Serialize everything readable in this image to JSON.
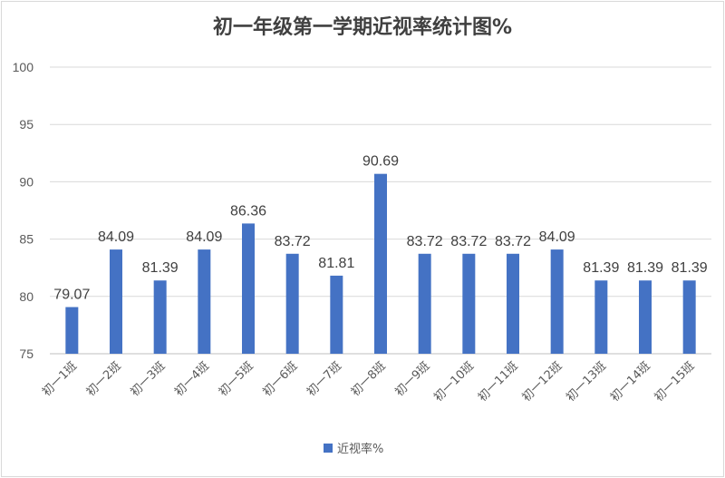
{
  "chart_data": {
    "type": "bar",
    "title": "初一年级第一学期近视率统计图%",
    "categories": [
      "初一1班",
      "初一2班",
      "初一3班",
      "初一4班",
      "初一5班",
      "初一6班",
      "初一7班",
      "初一8班",
      "初一9班",
      "初一10班",
      "初一11班",
      "初一12班",
      "初一13班",
      "初一14班",
      "初一15班"
    ],
    "series": [
      {
        "name": "近视率%",
        "color": "#4472c4",
        "values": [
          79.07,
          84.09,
          81.39,
          84.09,
          86.36,
          83.72,
          81.81,
          90.69,
          83.72,
          83.72,
          83.72,
          84.09,
          81.39,
          81.39,
          81.39
        ]
      }
    ],
    "data_labels": [
      "79.07",
      "84.09",
      "81.39",
      "84.09",
      "86.36",
      "83.72",
      "81.81",
      "90.69",
      "83.72",
      "83.72",
      "83.72",
      "84.09",
      "81.39",
      "81.39",
      "81.39"
    ],
    "ylim": [
      75,
      100
    ],
    "yticks": [
      75,
      80,
      85,
      90,
      95,
      100
    ],
    "grid": true,
    "legend": "bottom"
  }
}
